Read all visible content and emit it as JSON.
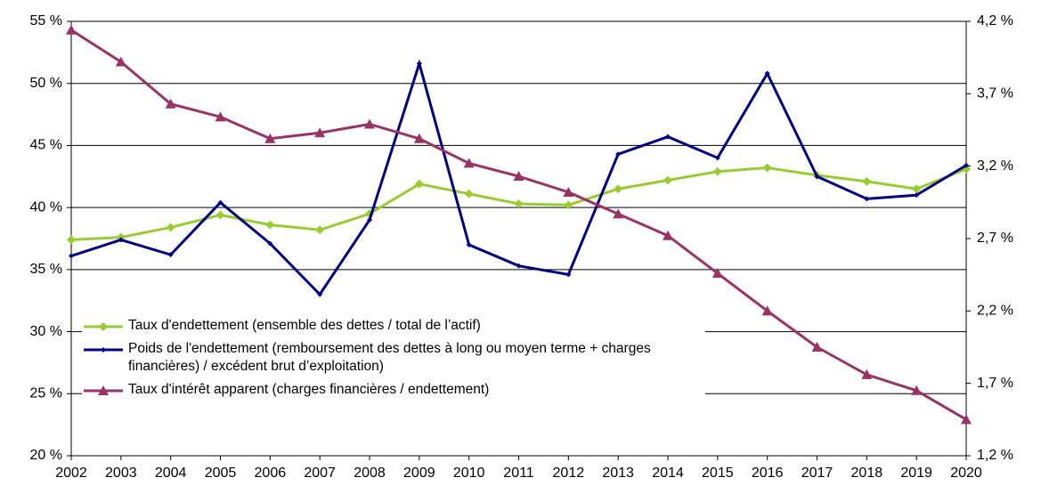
{
  "chart_data": {
    "type": "line",
    "categories": [
      "2002",
      "2003",
      "2004",
      "2005",
      "2006",
      "2007",
      "2008",
      "2009",
      "2010",
      "2011",
      "2012",
      "2013",
      "2014",
      "2015",
      "2016",
      "2017",
      "2018",
      "2019",
      "2020"
    ],
    "ylim": [
      20,
      55
    ],
    "yticks": [
      {
        "value": 20,
        "label": "20 %"
      },
      {
        "value": 25,
        "label": "25 %"
      },
      {
        "value": 30,
        "label": "30 %"
      },
      {
        "value": 35,
        "label": "35 %"
      },
      {
        "value": 40,
        "label": "40 %"
      },
      {
        "value": 45,
        "label": "45 %"
      },
      {
        "value": 50,
        "label": "50 %"
      },
      {
        "value": 55,
        "label": "55 %"
      }
    ],
    "y2lim": [
      1.2,
      4.2
    ],
    "y2ticks": [
      {
        "value": 1.2,
        "label": "1,2 %"
      },
      {
        "value": 1.7,
        "label": "1,7 %"
      },
      {
        "value": 2.2,
        "label": "2,2 %"
      },
      {
        "value": 2.7,
        "label": "2,7 %"
      },
      {
        "value": 3.2,
        "label": "3,2 %"
      },
      {
        "value": 3.7,
        "label": "3,7 %"
      },
      {
        "value": 4.2,
        "label": "4,2 %"
      }
    ],
    "grid": true,
    "legend": "lower-left",
    "series": [
      {
        "name": "Taux d'endettement (ensemble des dettes / total de l’actif)",
        "color": "#99cc33",
        "marker": "diamond",
        "values": [
          37.4,
          37.6,
          38.4,
          39.4,
          38.6,
          38.2,
          39.5,
          41.9,
          41.1,
          40.3,
          40.2,
          41.5,
          42.2,
          42.9,
          43.2,
          42.6,
          42.1,
          41.5,
          43.1
        ]
      },
      {
        "name": "Poids de l'endettement (remboursement des dettes à long ou moyen terme + charges financières) / excédent brut d’exploitation)",
        "color": "#000080",
        "marker": "small-diamond",
        "values": [
          36.1,
          37.4,
          36.2,
          40.4,
          37.1,
          33.0,
          39.0,
          51.6,
          37.0,
          35.3,
          34.6,
          44.3,
          45.7,
          44.0,
          50.8,
          42.5,
          40.7,
          41.0,
          43.4
        ]
      },
      {
        "name": "Taux d'intérêt apparent (charges financières / endettement)",
        "color": "#993366",
        "marker": "triangle",
        "axis": "y2",
        "values": [
          4.14,
          3.92,
          3.63,
          3.54,
          3.39,
          3.43,
          3.49,
          3.39,
          3.22,
          3.13,
          3.02,
          2.87,
          2.72,
          2.46,
          2.2,
          1.95,
          1.76,
          1.65,
          1.45
        ]
      }
    ]
  }
}
